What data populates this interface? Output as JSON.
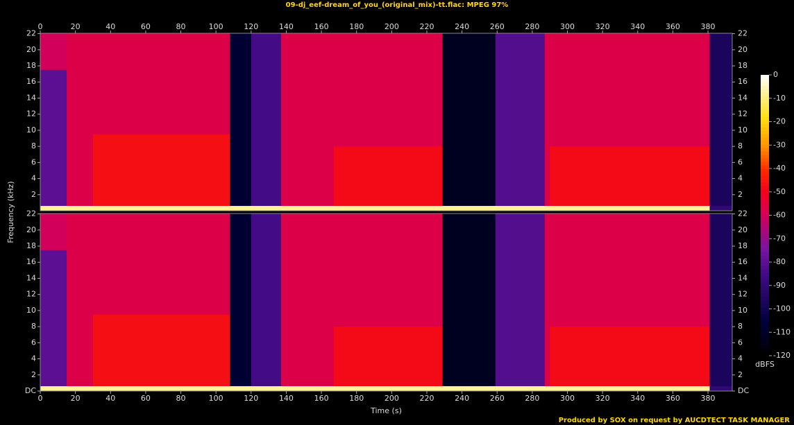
{
  "title": "09-dj_eef-dream_of_you_(original_mix)-tt.flac: MPEG 97%",
  "ylabel": "Frequency (kHz)",
  "footer": "Produced by SOX on request by AUCDTECT TASK MANAGER",
  "colorbar": {
    "label": "dBFS",
    "clim": [
      -120,
      0
    ],
    "ticks": [
      0,
      -10,
      -20,
      -30,
      -40,
      -50,
      -60,
      -70,
      -80,
      -90,
      -100,
      -110,
      -120
    ]
  },
  "chart_data": [
    {
      "type": "spectrogram",
      "xlim": [
        0,
        393.8
      ],
      "xticks": [
        0,
        20,
        40,
        60,
        80,
        100,
        120,
        140,
        160,
        180,
        200,
        220,
        240,
        260,
        280,
        300,
        320,
        340,
        360,
        380
      ],
      "ylim": [
        0,
        22.05
      ],
      "yticks": [
        2,
        4,
        6,
        8,
        10,
        12,
        14,
        16,
        18,
        20,
        22
      ],
      "regions": [
        [
          0,
          15,
          0.6,
          22.05,
          -80
        ],
        [
          0,
          15,
          17.5,
          22.05,
          -60
        ],
        [
          15,
          108,
          0.6,
          22.05,
          -57
        ],
        [
          30,
          108,
          0.6,
          9.5,
          -47
        ],
        [
          108,
          120,
          0.6,
          22.05,
          -108
        ],
        [
          120,
          137,
          0.6,
          22.05,
          -85
        ],
        [
          137,
          229,
          0.6,
          22.05,
          -57
        ],
        [
          167,
          229,
          0.6,
          8,
          -48
        ],
        [
          229,
          259,
          0.6,
          22.05,
          -112
        ],
        [
          259,
          287,
          0.6,
          22.05,
          -82
        ],
        [
          287,
          381,
          0.6,
          22.05,
          -57
        ],
        [
          290,
          381,
          0.6,
          8,
          -48
        ],
        [
          381,
          393.8,
          0.6,
          22.05,
          -97
        ],
        [
          0,
          381,
          0,
          0.6,
          -8
        ],
        [
          381,
          393.8,
          0,
          0.6,
          -90
        ]
      ]
    },
    {
      "type": "spectrogram",
      "xlabel": "Time (s)",
      "xlim": [
        0,
        393.8
      ],
      "xticks": [
        0,
        20,
        40,
        60,
        80,
        100,
        120,
        140,
        160,
        180,
        200,
        220,
        240,
        260,
        280,
        300,
        320,
        340,
        360,
        380
      ],
      "ylim": [
        0,
        22.05
      ],
      "yticks": [
        {
          "value": 0,
          "label": "DC"
        },
        2,
        4,
        6,
        8,
        10,
        12,
        14,
        16,
        18,
        20,
        22
      ],
      "regions": [
        [
          0,
          15,
          0.6,
          22.05,
          -80
        ],
        [
          0,
          15,
          17.5,
          22.05,
          -60
        ],
        [
          15,
          108,
          0.6,
          22.05,
          -57
        ],
        [
          30,
          108,
          0.6,
          9.5,
          -47
        ],
        [
          108,
          120,
          0.6,
          22.05,
          -108
        ],
        [
          120,
          137,
          0.6,
          22.05,
          -85
        ],
        [
          137,
          229,
          0.6,
          22.05,
          -57
        ],
        [
          167,
          229,
          0.6,
          8,
          -48
        ],
        [
          229,
          259,
          0.6,
          22.05,
          -112
        ],
        [
          259,
          287,
          0.6,
          22.05,
          -82
        ],
        [
          287,
          381,
          0.6,
          22.05,
          -57
        ],
        [
          290,
          381,
          0.6,
          8,
          -48
        ],
        [
          381,
          393.8,
          0.6,
          22.05,
          -97
        ],
        [
          0,
          381,
          0,
          0.6,
          -8
        ],
        [
          381,
          393.8,
          0,
          0.6,
          -90
        ]
      ]
    }
  ]
}
